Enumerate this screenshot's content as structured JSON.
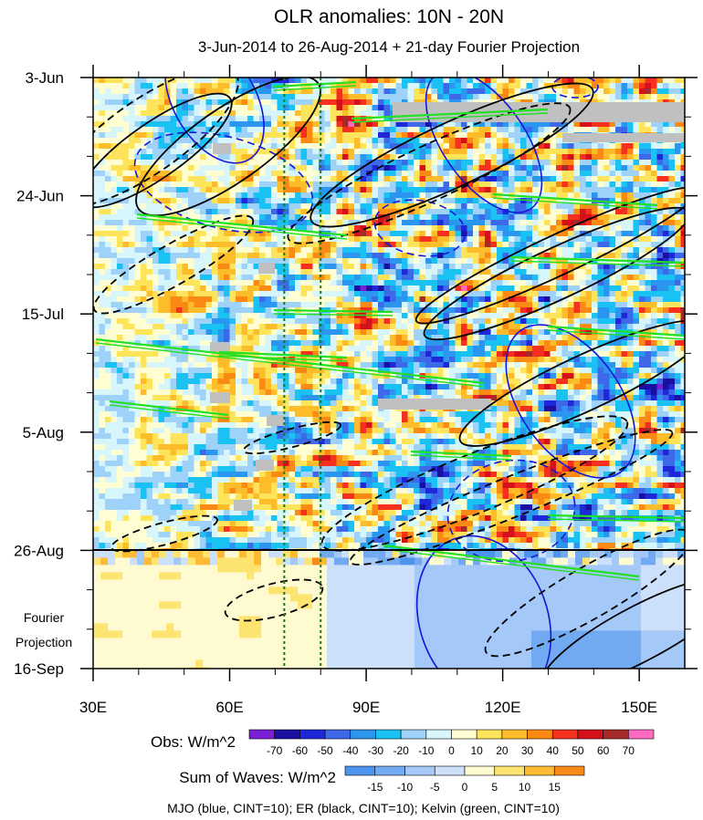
{
  "chart_data": {
    "type": "heatmap",
    "title": "OLR anomalies: 10N - 20N",
    "subtitle": "3-Jun-2014 to 26-Aug-2014 + 21-day Fourier Projection",
    "x": {
      "range": [
        30,
        160
      ],
      "ticks": [
        30,
        60,
        90,
        120,
        150
      ],
      "tick_labels": [
        "30E",
        "60E",
        "90E",
        "120E",
        "150E"
      ]
    },
    "y": {
      "range": [
        "3-Jun-2014",
        "16-Sep-2014"
      ],
      "ticks": [
        "3-Jun",
        "24-Jun",
        "15-Jul",
        "5-Aug",
        "26-Aug",
        "16-Sep"
      ],
      "tick_labels": [
        "3-Jun",
        "24-Jun",
        "15-Jul",
        "5-Aug",
        "26-Aug",
        "16-Sep"
      ],
      "inverted": true
    },
    "observation_end": "26-Aug",
    "projection_label": [
      "Fourier",
      "Projection"
    ],
    "reference_lines_lon": [
      72,
      80
    ],
    "obs_colorbar": {
      "label": "Obs: W/m^2",
      "levels": [
        -70,
        -60,
        -50,
        -40,
        -30,
        -20,
        -10,
        0,
        10,
        20,
        30,
        40,
        50,
        60,
        70
      ],
      "colors": [
        "#7a1fd6",
        "#1a0fa0",
        "#1f28d8",
        "#3d68e8",
        "#2a96f0",
        "#19c2f2",
        "#9ed2f8",
        "#d6f6fc",
        "#fffed2",
        "#fde45a",
        "#fdbd2a",
        "#fb8a14",
        "#f6301e",
        "#d4101a",
        "#a52a2a",
        "#ff69c2"
      ]
    },
    "waves_colorbar": {
      "label": "Sum of Waves: W/m^2",
      "levels": [
        -15,
        -10,
        -5,
        0,
        5,
        10,
        15
      ],
      "colors": [
        "#4d94ee",
        "#72aaf2",
        "#a4c8f7",
        "#cce0fa",
        "#fffbd0",
        "#fde470",
        "#fdbb33",
        "#f98a18"
      ]
    },
    "contours": [
      {
        "name": "MJO",
        "color": "#1616d8",
        "cint": 10
      },
      {
        "name": "ER",
        "color": "#000000",
        "cint": 10
      },
      {
        "name": "Kelvin",
        "color": "#22e022",
        "cint": 10
      }
    ],
    "footer": "MJO (blue, CINT=10); ER (black, CINT=10); Kelvin (green, CINT=10)",
    "missing_color": "#c0c0c0"
  }
}
